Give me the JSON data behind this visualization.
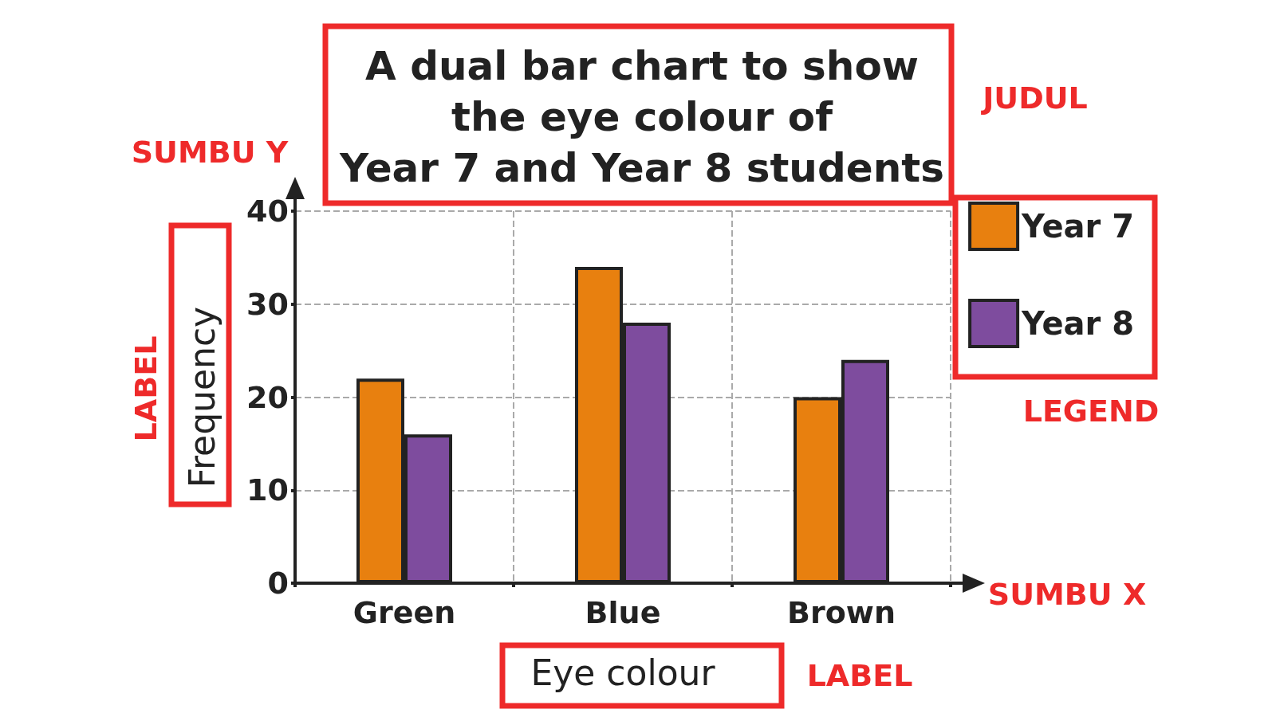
{
  "chart_data": {
    "type": "bar",
    "title": "A dual bar chart to show\nthe eye colour of\nYear 7 and Year 8 students",
    "xlabel": "Eye colour",
    "ylabel": "Frequency",
    "categories": [
      "Green",
      "Blue",
      "Brown"
    ],
    "series": [
      {
        "name": "Year 7",
        "color": "#e8800f",
        "values": [
          22,
          34,
          20
        ]
      },
      {
        "name": "Year 8",
        "color": "#7e4c9e",
        "values": [
          16,
          28,
          24
        ]
      }
    ],
    "ylim": [
      0,
      40
    ],
    "yticks": [
      0,
      10,
      20,
      30,
      40
    ],
    "grid": true,
    "legend": "right",
    "annotations": [
      "JUDUL",
      "SUMBU Y",
      "LABEL",
      "LEGEND",
      "SUMBU X",
      "LABEL"
    ]
  }
}
